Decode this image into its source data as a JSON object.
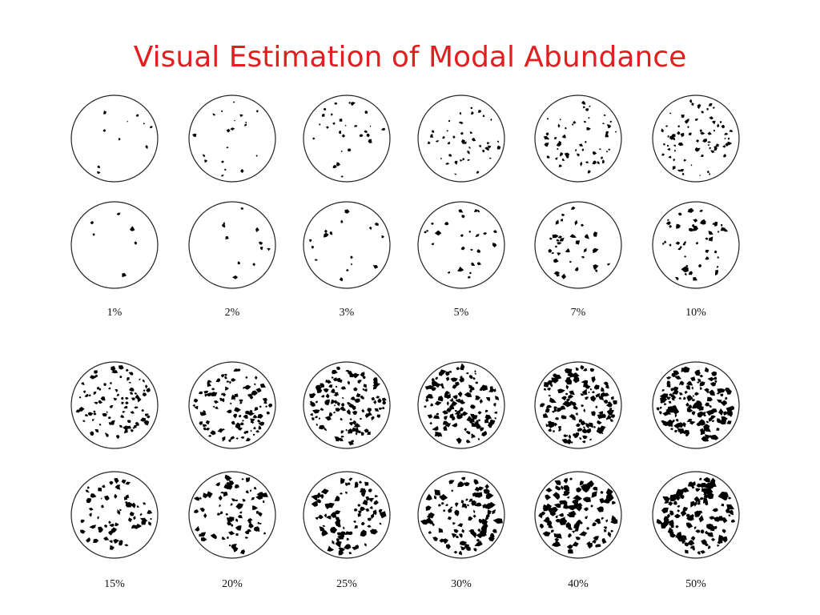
{
  "title": "Visual Estimation of Modal Abundance",
  "colors": {
    "title": "#e02020",
    "grain": "#000000",
    "outline": "#222222"
  },
  "chart_data": {
    "type": "diagram",
    "panels": [
      {
        "label": "1%",
        "fraction": 0.01
      },
      {
        "label": "2%",
        "fraction": 0.02
      },
      {
        "label": "3%",
        "fraction": 0.03
      },
      {
        "label": "5%",
        "fraction": 0.05
      },
      {
        "label": "7%",
        "fraction": 0.07
      },
      {
        "label": "10%",
        "fraction": 0.1
      },
      {
        "label": "15%",
        "fraction": 0.15
      },
      {
        "label": "20%",
        "fraction": 0.2
      },
      {
        "label": "25%",
        "fraction": 0.25
      },
      {
        "label": "30%",
        "fraction": 0.3
      },
      {
        "label": "40%",
        "fraction": 0.4
      },
      {
        "label": "50%",
        "fraction": 0.5
      }
    ]
  }
}
